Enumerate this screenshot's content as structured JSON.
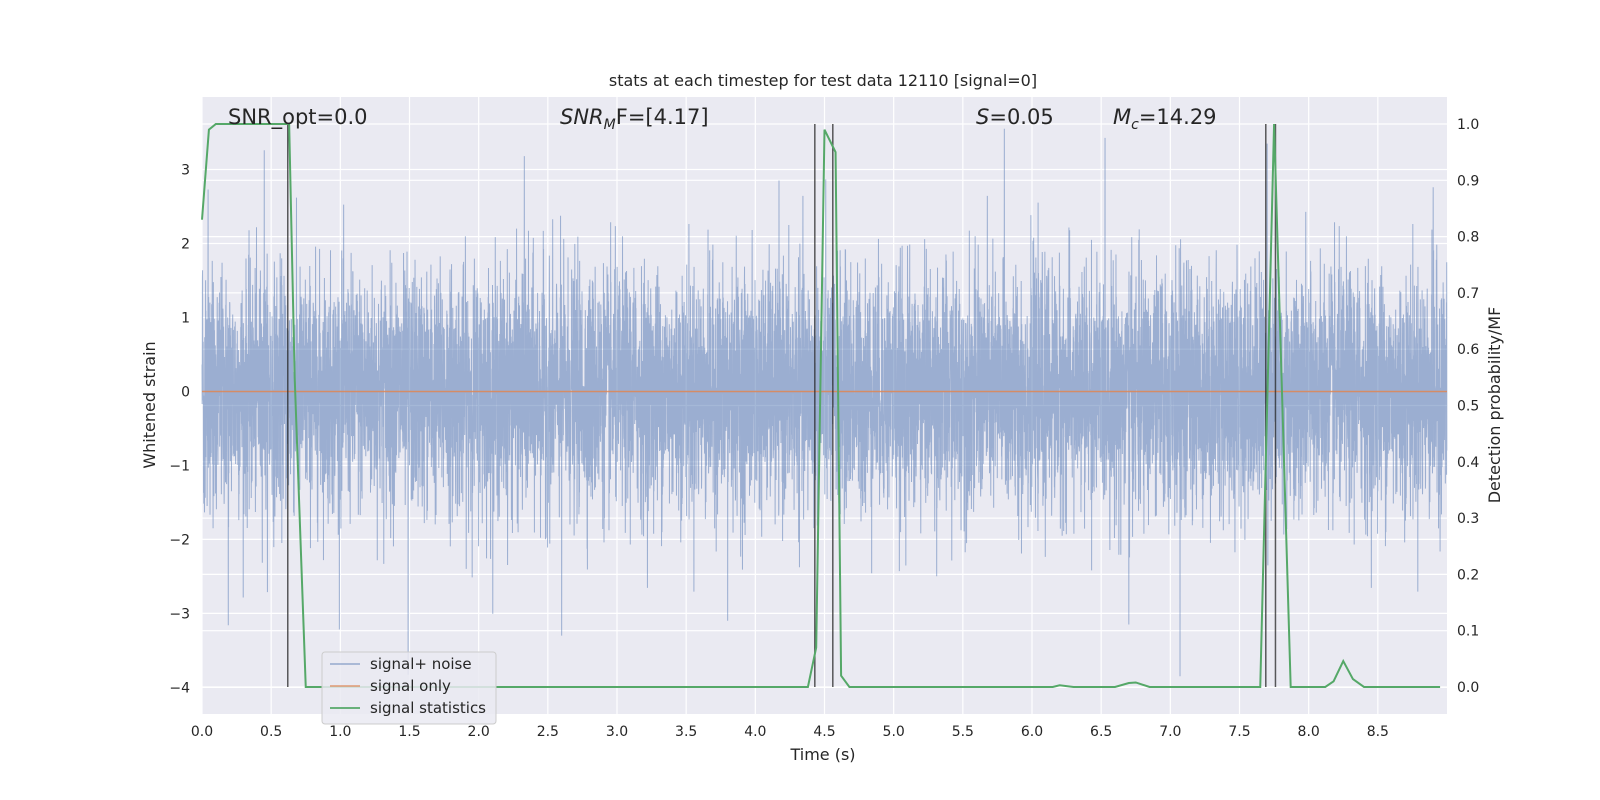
{
  "chart_data": {
    "type": "line",
    "title": "stats at each timestep for test data 12110 [signal=0]",
    "xlabel": "Time (s)",
    "ylabel": "Whitened strain",
    "y2label": "Detection probability/MF",
    "xlim": [
      0,
      9.0
    ],
    "ylim": [
      -4.36,
      3.98
    ],
    "y2lim": [
      -0.048,
      1.048
    ],
    "x_ticks": [
      "0.0",
      "0.5",
      "1.0",
      "1.5",
      "2.0",
      "2.5",
      "3.0",
      "3.5",
      "4.0",
      "4.5",
      "5.0",
      "5.5",
      "6.0",
      "6.5",
      "7.0",
      "7.5",
      "8.0",
      "8.5"
    ],
    "y_ticks": [
      "3",
      "2",
      "1",
      "0",
      "−1",
      "−2",
      "−3",
      "−4"
    ],
    "y2_ticks": [
      "1.0",
      "0.9",
      "0.8",
      "0.7",
      "0.6",
      "0.5",
      "0.4",
      "0.3",
      "0.2",
      "0.1",
      "0.0"
    ],
    "grid": true,
    "legend_position": "lower-left",
    "colors": {
      "noise": "#4c72b0",
      "signal": "#dd8452",
      "stats": "#55a868",
      "markers": "#262626",
      "background": "#eaeaf2"
    },
    "annotations": {
      "snr_opt": "SNR_opt=0.0",
      "snr_mf_prefix": "SNR",
      "snr_mf_sub": "M",
      "snr_mf_suffix": "F=[4.17]",
      "s_prefix": "S",
      "s_suffix": "=0.05",
      "mc_prefix": "M",
      "mc_sub": "c",
      "mc_suffix": "=14.29"
    },
    "series": [
      {
        "name": "signal+ noise",
        "kind": "noise",
        "n_samples": 9000,
        "approx_sigma": 0.8,
        "approx_max": 3.6,
        "approx_min": -3.9,
        "peaks": [
          [
            0.19,
            -3.16
          ],
          [
            0.45,
            3.26
          ],
          [
            1.49,
            -3.83
          ],
          [
            2.33,
            3.18
          ],
          [
            2.6,
            -3.3
          ],
          [
            3.8,
            -3.1
          ],
          [
            5.8,
            3.55
          ],
          [
            6.7,
            -3.15
          ],
          [
            7.07,
            -3.85
          ],
          [
            7.7,
            3.35
          ],
          [
            8.9,
            2.76
          ]
        ]
      },
      {
        "name": "signal only",
        "kind": "signal",
        "value": 0.0
      },
      {
        "name": "signal statistics",
        "kind": "stats",
        "x": [
          0.0,
          0.05,
          0.1,
          0.2,
          0.3,
          0.4,
          0.5,
          0.6,
          0.63,
          0.67,
          0.75,
          1.0,
          2.0,
          3.0,
          4.0,
          4.38,
          4.44,
          4.5,
          4.58,
          4.62,
          4.68,
          5.0,
          6.0,
          6.15,
          6.2,
          6.3,
          6.6,
          6.7,
          6.75,
          6.85,
          7.0,
          7.5,
          7.65,
          7.75,
          7.87,
          8.0,
          8.12,
          8.18,
          8.25,
          8.32,
          8.4,
          8.5,
          8.95
        ],
        "y": [
          0.83,
          0.99,
          1.0,
          1.0,
          1.0,
          1.0,
          1.0,
          1.0,
          1.0,
          0.55,
          0.0,
          0.0,
          0.0,
          0.0,
          0.0,
          0.0,
          0.07,
          0.99,
          0.95,
          0.02,
          0.0,
          0.0,
          0.0,
          0.0,
          0.003,
          0.0,
          0.0,
          0.007,
          0.008,
          0.0,
          0.0,
          0.0,
          0.0,
          1.0,
          0.0,
          0.0,
          0.0,
          0.01,
          0.046,
          0.014,
          0.0,
          0.0,
          0.0
        ]
      }
    ],
    "vertical_markers": [
      0.62,
      4.43,
      4.56,
      7.69,
      7.76
    ]
  }
}
